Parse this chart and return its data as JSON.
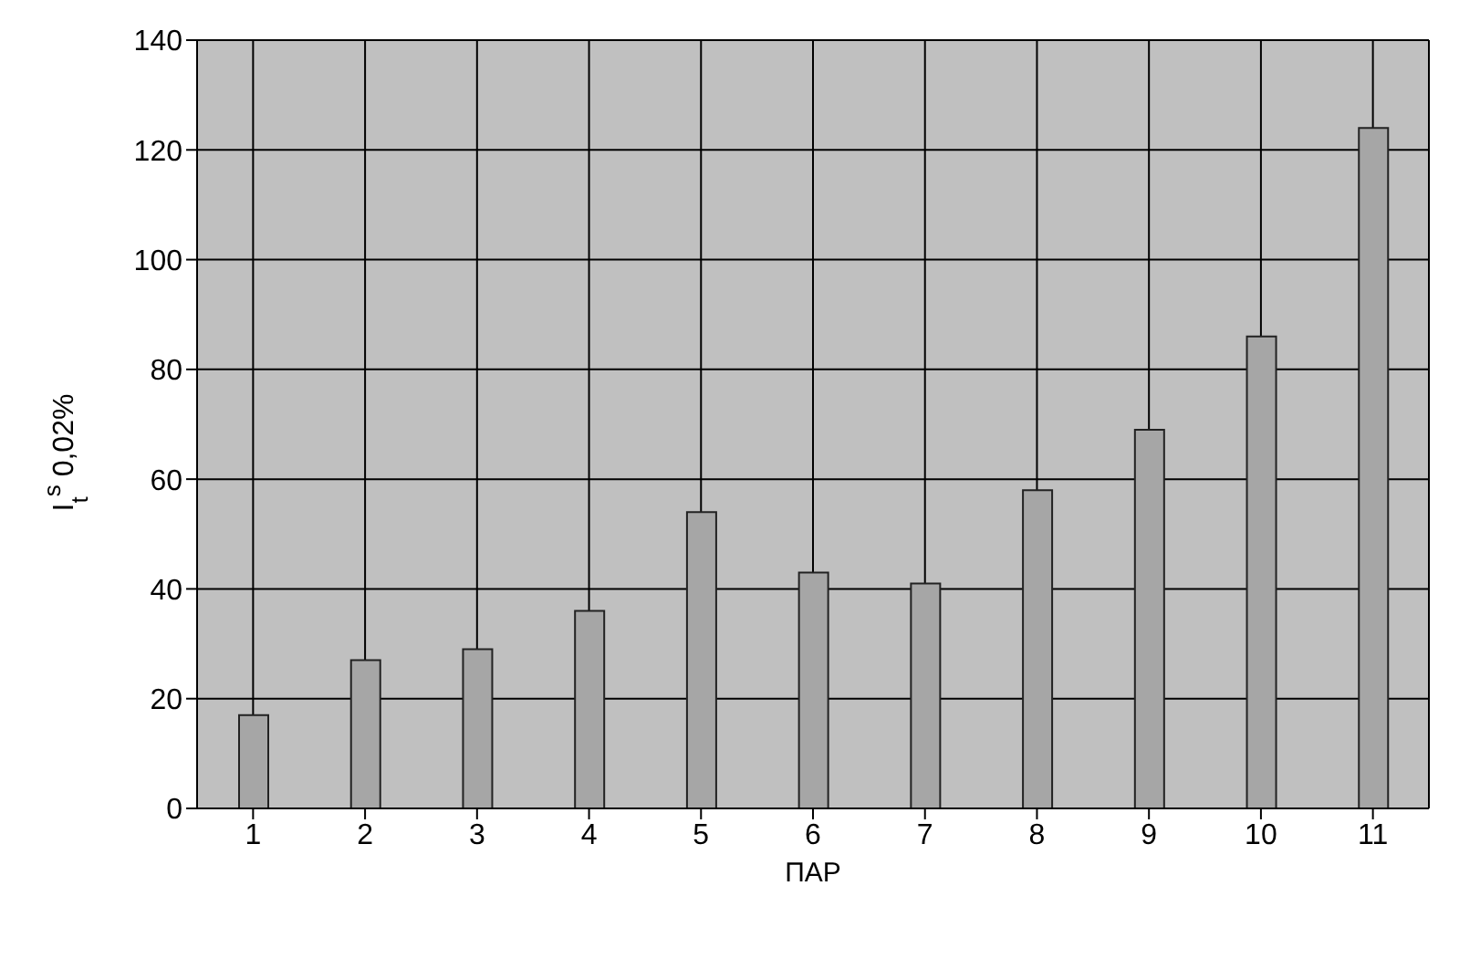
{
  "chart_data": {
    "type": "bar",
    "xlabel": "ПАР",
    "ylabel": "I$_{t}$$^{s}$ 0,02%",
    "categories": [
      "1",
      "2",
      "3",
      "4",
      "5",
      "6",
      "7",
      "8",
      "9",
      "10",
      "11"
    ],
    "values": [
      17,
      27,
      29,
      36,
      54,
      43,
      41,
      58,
      69,
      86,
      124
    ],
    "color": "#a6a6a6",
    "ylim": [
      0,
      140
    ],
    "yticks": [
      0,
      20,
      40,
      60,
      80,
      100,
      120,
      140
    ],
    "grid": true
  }
}
